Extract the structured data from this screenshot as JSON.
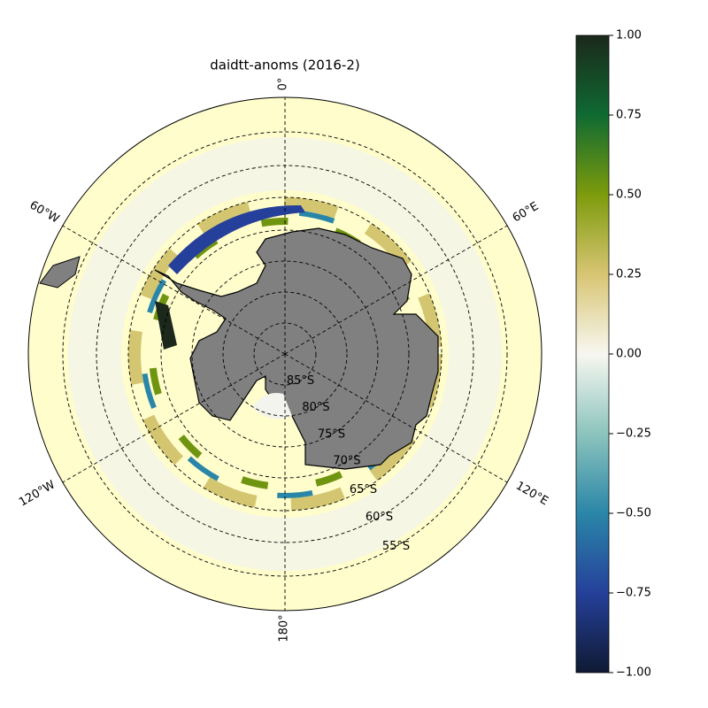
{
  "map": {
    "title": "daidtt-anoms (2016-2)",
    "longitude_labels": [
      "0°",
      "60°E",
      "120°E",
      "180°",
      "120°W",
      "60°W"
    ],
    "latitude_labels": [
      "85°S",
      "80°S",
      "75°S",
      "70°S",
      "65°S",
      "60°S",
      "55°S"
    ]
  },
  "colorbar": {
    "lim": [
      -1,
      1
    ],
    "ticks": [
      {
        "value": 1,
        "label": "1.00"
      },
      {
        "value": 0.75,
        "label": "0.75"
      },
      {
        "value": 0.5,
        "label": "0.50"
      },
      {
        "value": 0.25,
        "label": "0.25"
      },
      {
        "value": 0,
        "label": "0.00"
      },
      {
        "value": -0.25,
        "label": "−0.25"
      },
      {
        "value": -0.5,
        "label": "−0.50"
      },
      {
        "value": -0.75,
        "label": "−0.75"
      },
      {
        "value": -1,
        "label": "−1.00"
      }
    ]
  }
}
